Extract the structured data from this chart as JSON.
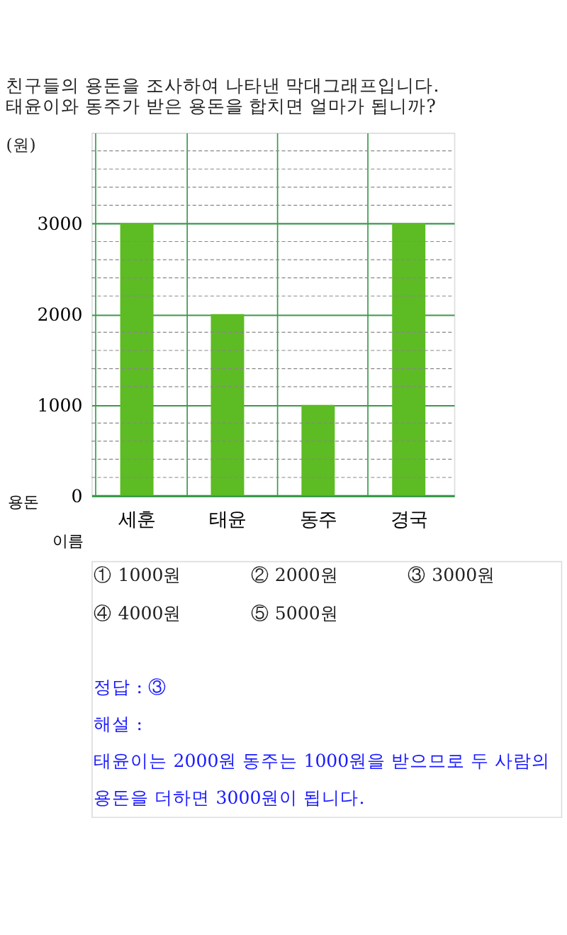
{
  "chart_data": {
    "type": "bar",
    "title": "친구들의 용돈을 조사하여 나타낸 막대그래프입니다. 태윤이와 동주가 받은 용돈을 합치면 얼마가 됩니까?",
    "xlabel": "이름",
    "ylabel": "용돈",
    "categories": [
      "세훈",
      "태윤",
      "동주",
      "경국"
    ],
    "values": [
      3000,
      2000,
      1000,
      3000
    ],
    "color": "#5dbb24",
    "ylim": [
      0,
      4000
    ],
    "yticks": [
      0,
      {
        "value": 200,
        "label": null
      },
      {
        "value": 400,
        "label": null
      },
      {
        "value": 600,
        "label": null
      },
      {
        "value": 800,
        "label": null
      },
      1000,
      {
        "value": 1200,
        "label": null
      },
      {
        "value": 1400,
        "label": null
      },
      {
        "value": 1600,
        "label": null
      },
      {
        "value": 1800,
        "label": null
      },
      2000,
      {
        "value": 2200,
        "label": null
      },
      {
        "value": 2400,
        "label": null
      },
      {
        "value": 2600,
        "label": null
      },
      {
        "value": 2800,
        "label": null
      },
      3000,
      {
        "value": 3200,
        "label": null
      },
      {
        "value": 3400,
        "label": null
      },
      {
        "value": 3600,
        "label": null
      },
      {
        "value": 3800,
        "label": null
      }
    ],
    "grid": true,
    "annotations": [
      "(원)",
      "① 1000원",
      "② 2000원",
      "③ 3000원",
      "④ 4000원",
      "⑤ 5000원",
      "정답 : ③",
      "해설 :",
      "태윤이는 2000원 동주는 1000원을 받으므로 두 사람의 용돈을 더하면 3000원이 됩니다."
    ]
  }
}
